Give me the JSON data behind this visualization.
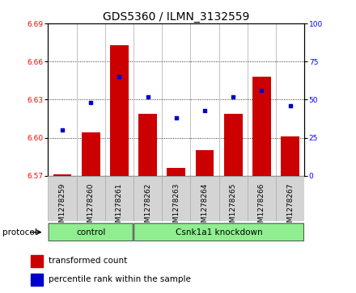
{
  "title": "GDS5360 / ILMN_3132559",
  "samples": [
    "GSM1278259",
    "GSM1278260",
    "GSM1278261",
    "GSM1278262",
    "GSM1278263",
    "GSM1278264",
    "GSM1278265",
    "GSM1278266",
    "GSM1278267"
  ],
  "bar_values": [
    6.571,
    6.604,
    6.673,
    6.619,
    6.576,
    6.59,
    6.619,
    6.648,
    6.601
  ],
  "dot_values": [
    30,
    48,
    65,
    52,
    38,
    43,
    52,
    56,
    46
  ],
  "ylim_left": [
    6.57,
    6.69
  ],
  "ylim_right": [
    0,
    100
  ],
  "yticks_left": [
    6.57,
    6.6,
    6.63,
    6.66,
    6.69
  ],
  "yticks_right": [
    0,
    25,
    50,
    75,
    100
  ],
  "bar_color": "#cc0000",
  "dot_color": "#0000cc",
  "bar_bottom": 6.57,
  "n_control": 3,
  "protocol_label": "protocol",
  "group_labels": [
    "control",
    "Csnk1a1 knockdown"
  ],
  "legend_bar": "transformed count",
  "legend_dot": "percentile rank within the sample",
  "group_bg_color": "#90EE90",
  "tick_bg_color": "#d4d4d4",
  "title_fontsize": 10,
  "tick_fontsize": 6.5,
  "label_fontsize": 7.5,
  "legend_fontsize": 7.5
}
